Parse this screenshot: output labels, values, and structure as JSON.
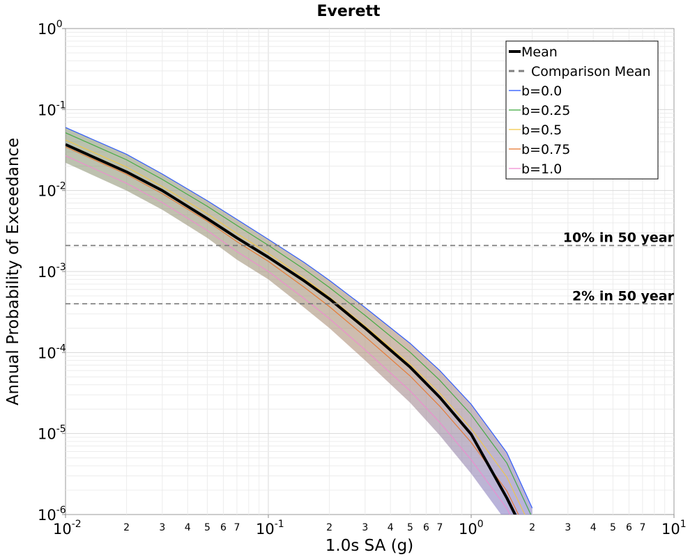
{
  "chart_data": {
    "type": "line",
    "title": "Everett",
    "xlabel": "1.0s SA (g)",
    "ylabel": "Annual Probability of Exceedance",
    "xscale": "log",
    "yscale": "log",
    "xlim": [
      0.01,
      10
    ],
    "ylim": [
      1e-06,
      1
    ],
    "grid": true,
    "legend_position": "top-right",
    "x_major_ticks": [
      {
        "base": "10",
        "exp": "-2",
        "value": 0.01
      },
      {
        "base": "10",
        "exp": "-1",
        "value": 0.1
      },
      {
        "base": "10",
        "exp": "0",
        "value": 1
      },
      {
        "base": "10",
        "exp": "1",
        "value": 10
      }
    ],
    "y_major_ticks": [
      {
        "base": "10",
        "exp": "0",
        "value": 1
      },
      {
        "base": "10",
        "exp": "-1",
        "value": 0.1
      },
      {
        "base": "10",
        "exp": "-2",
        "value": 0.01
      },
      {
        "base": "10",
        "exp": "-3",
        "value": 0.001
      },
      {
        "base": "10",
        "exp": "-4",
        "value": 0.0001
      },
      {
        "base": "10",
        "exp": "-5",
        "value": 1e-05
      },
      {
        "base": "10",
        "exp": "-6",
        "value": 1e-06
      }
    ],
    "x_minor_tick_labels": [
      "2",
      "3",
      "4",
      "5",
      "6",
      "7"
    ],
    "legend": [
      {
        "label": "Mean",
        "color": "#000000",
        "style": "solid-thick"
      },
      {
        "label": "Comparison Mean",
        "color": "#808080",
        "style": "dashed"
      },
      {
        "label": "b=0.0",
        "color": "#1f4fff",
        "style": "solid-thin"
      },
      {
        "label": "b=0.25",
        "color": "#3aa83a",
        "style": "solid-thin"
      },
      {
        "label": "b=0.5",
        "color": "#f2c744",
        "style": "solid-thin"
      },
      {
        "label": "b=0.75",
        "color": "#e8742a",
        "style": "solid-thin"
      },
      {
        "label": "b=1.0",
        "color": "#f08ad0",
        "style": "solid-thin"
      }
    ],
    "hlines": [
      {
        "label": "10% in 50 year",
        "y": 0.0021
      },
      {
        "label": "2% in 50 year",
        "y": 0.0004
      }
    ],
    "mean": {
      "x": [
        0.01,
        0.02,
        0.03,
        0.05,
        0.07,
        0.1,
        0.15,
        0.2,
        0.3,
        0.5,
        0.7,
        1.0,
        1.5,
        1.7
      ],
      "y": [
        0.037,
        0.017,
        0.01,
        0.0045,
        0.0026,
        0.0015,
        0.00077,
        0.00046,
        0.0002,
        6.6e-05,
        2.8e-05,
        9.8e-06,
        1.6e-06,
        8.5e-07
      ]
    },
    "band": {
      "x": [
        0.01,
        0.02,
        0.03,
        0.05,
        0.07,
        0.1,
        0.15,
        0.2,
        0.3,
        0.5,
        0.7,
        1.0,
        1.5,
        2.0
      ],
      "upper": [
        0.06,
        0.028,
        0.016,
        0.0075,
        0.0044,
        0.0025,
        0.0013,
        0.00078,
        0.00036,
        0.00013,
        6e-05,
        2.3e-05,
        5.8e-06,
        1.2e-06
      ],
      "lower": [
        0.022,
        0.01,
        0.0058,
        0.0026,
        0.0014,
        0.0008,
        0.00036,
        0.0002,
        8e-05,
        2.4e-05,
        9.5e-06,
        3.2e-06,
        8e-07,
        2e-07
      ]
    }
  }
}
